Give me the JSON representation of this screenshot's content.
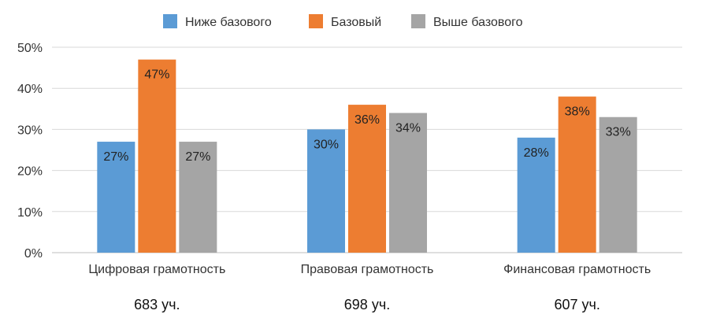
{
  "chart_data": {
    "type": "bar",
    "categories": [
      "Цифровая грамотность",
      "Правовая грамотность",
      "Финансовая грамотность"
    ],
    "participants": [
      "683 уч.",
      "698 уч.",
      "607 уч."
    ],
    "series": [
      {
        "name": "Ниже базового",
        "values": [
          27,
          30,
          28
        ],
        "labels": [
          "27%",
          "30%",
          "28%"
        ],
        "color": "#5B9BD5"
      },
      {
        "name": "Базовый",
        "values": [
          47,
          36,
          38
        ],
        "labels": [
          "47%",
          "36%",
          "38%"
        ],
        "color": "#ED7D31"
      },
      {
        "name": "Выше базового",
        "values": [
          27,
          34,
          33
        ],
        "labels": [
          "27%",
          "34%",
          "33%"
        ],
        "color": "#A5A5A5"
      }
    ],
    "ylim": [
      0,
      50
    ],
    "yticks": [
      0,
      10,
      20,
      30,
      40,
      50
    ],
    "ytick_labels": [
      "0%",
      "10%",
      "20%",
      "30%",
      "40%",
      "50%"
    ],
    "grid": true,
    "legend_position": "top-center",
    "title": "",
    "xlabel": "",
    "ylabel": ""
  }
}
